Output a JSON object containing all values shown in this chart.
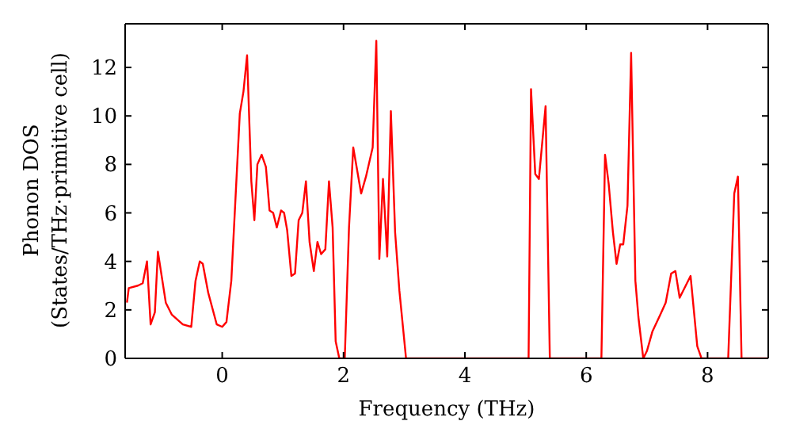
{
  "chart_data": {
    "type": "line",
    "xlabel": "Frequency (THz)",
    "ylabel": "Phonon DOS\n(States/THz·primitive cell)",
    "xlim": [
      -1.6,
      9.0
    ],
    "xticks": [
      0,
      2,
      4,
      6,
      8
    ],
    "ylim": [
      0,
      13.8
    ],
    "yticks": [
      0,
      2,
      4,
      6,
      8,
      10,
      12
    ],
    "marker": "none",
    "line_style": "solid",
    "series": [
      {
        "color": "#ff0000",
        "x": [
          -1.57,
          -1.54,
          -1.39,
          -1.31,
          -1.24,
          -1.18,
          -1.11,
          -1.06,
          -0.93,
          -0.83,
          -0.65,
          -0.51,
          -0.44,
          -0.37,
          -0.32,
          -0.23,
          -0.09,
          0.0,
          0.07,
          0.15,
          0.29,
          0.35,
          0.41,
          0.48,
          0.53,
          0.58,
          0.65,
          0.72,
          0.78,
          0.84,
          0.9,
          0.97,
          1.02,
          1.07,
          1.14,
          1.2,
          1.26,
          1.32,
          1.38,
          1.44,
          1.51,
          1.57,
          1.63,
          1.7,
          1.76,
          1.82,
          1.87,
          1.93,
          2.02,
          2.09,
          2.16,
          2.29,
          2.37,
          2.48,
          2.54,
          2.59,
          2.65,
          2.72,
          2.78,
          2.85,
          2.92,
          3.03,
          5.05,
          5.09,
          5.16,
          5.22,
          5.33,
          5.4,
          6.25,
          6.31,
          6.37,
          6.44,
          6.5,
          6.56,
          6.61,
          6.68,
          6.74,
          6.81,
          6.86,
          6.94,
          7.0,
          7.09,
          7.22,
          7.31,
          7.4,
          7.47,
          7.54,
          7.64,
          7.72,
          7.83,
          7.9,
          8.34,
          8.44,
          8.5,
          8.56,
          9.0
        ],
        "values": [
          2.3,
          2.9,
          3.0,
          3.1,
          4.0,
          1.4,
          1.9,
          4.4,
          2.3,
          1.8,
          1.4,
          1.3,
          3.2,
          4.0,
          3.9,
          2.7,
          1.4,
          1.3,
          1.5,
          3.2,
          10.1,
          11.0,
          12.5,
          7.3,
          5.7,
          8.0,
          8.4,
          7.9,
          6.1,
          6.0,
          5.4,
          6.1,
          6.0,
          5.3,
          3.4,
          3.5,
          5.7,
          6.0,
          7.3,
          4.8,
          3.6,
          4.8,
          4.3,
          4.5,
          7.3,
          5.4,
          0.7,
          0.0,
          0.0,
          5.4,
          8.7,
          6.8,
          7.5,
          8.7,
          13.1,
          4.1,
          7.4,
          4.2,
          10.2,
          5.2,
          2.8,
          0.0,
          0.0,
          11.1,
          7.6,
          7.4,
          10.4,
          0.0,
          0.0,
          8.4,
          7.2,
          5.2,
          3.9,
          4.7,
          4.7,
          6.3,
          12.6,
          3.2,
          1.7,
          0.0,
          0.3,
          1.1,
          1.8,
          2.3,
          3.5,
          3.6,
          2.5,
          3.0,
          3.4,
          0.5,
          0.0,
          0.0,
          6.8,
          7.5,
          0.0,
          0.0
        ]
      }
    ]
  }
}
